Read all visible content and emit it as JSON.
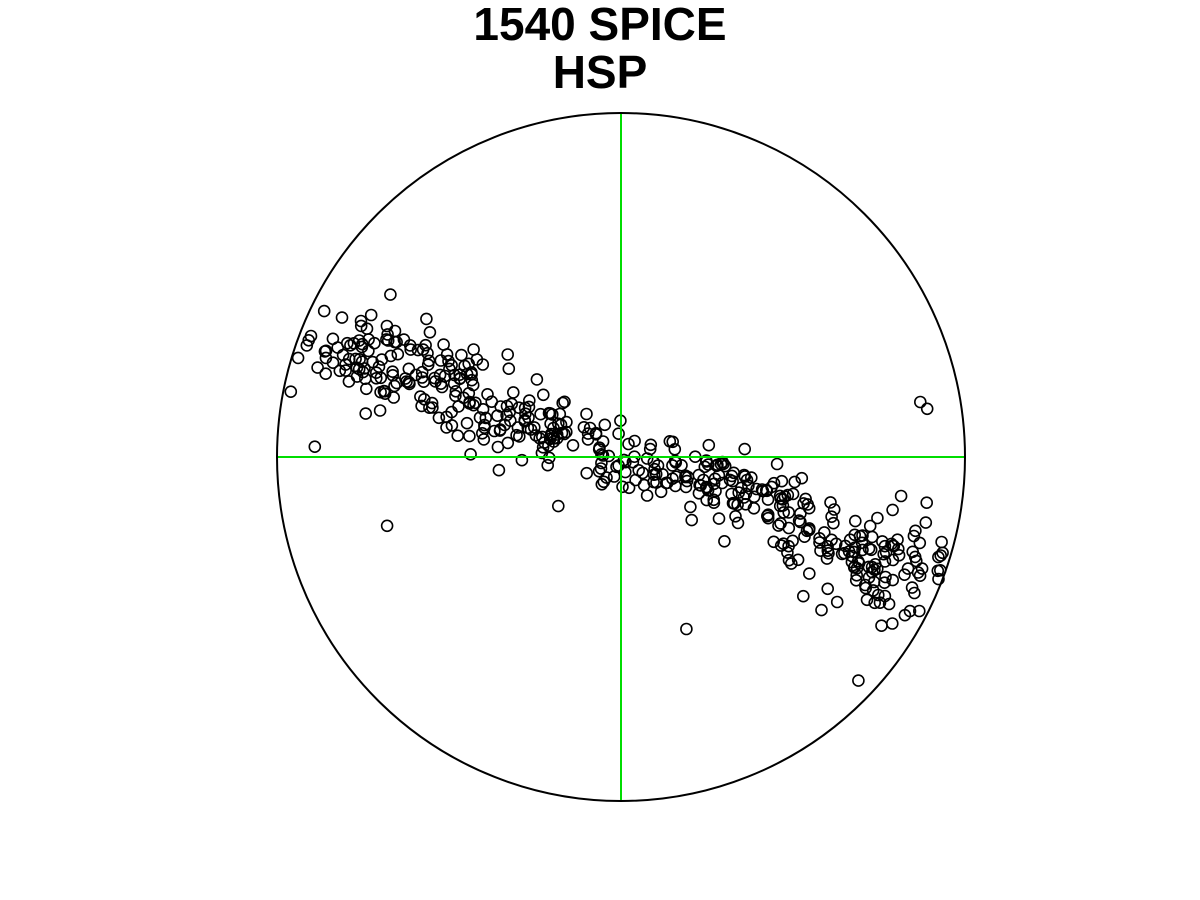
{
  "chart_data": {
    "type": "scatter",
    "title_lines": [
      "1540 SPICE",
      "HSP"
    ],
    "projection": "stereonet",
    "xlim": [
      -1,
      1
    ],
    "ylim": [
      -1,
      1
    ],
    "grid": false,
    "legend": "none",
    "colors": {
      "points": "#000000",
      "crosshair": "#00dd00",
      "circle": "#000000"
    },
    "marker": "open-circle",
    "clusters": [
      {
        "x": -0.62,
        "y": 0.25,
        "n": 150,
        "sx": 0.16,
        "sy": 0.08,
        "corr": -0.45
      },
      {
        "x": -0.25,
        "y": 0.08,
        "n": 80,
        "sx": 0.12,
        "sy": 0.06,
        "corr": -0.4
      },
      {
        "x": 0.08,
        "y": -0.03,
        "n": 60,
        "sx": 0.1,
        "sy": 0.05,
        "corr": -0.3
      },
      {
        "x": 0.35,
        "y": -0.1,
        "n": 80,
        "sx": 0.1,
        "sy": 0.06,
        "corr": -0.35
      },
      {
        "x": 0.7,
        "y": -0.28,
        "n": 130,
        "sx": 0.14,
        "sy": 0.08,
        "corr": -0.35
      }
    ],
    "outliers": [
      {
        "x": -0.68,
        "y": -0.2
      },
      {
        "x": 0.19,
        "y": -0.5
      },
      {
        "x": 0.69,
        "y": -0.65
      },
      {
        "x": 0.87,
        "y": 0.16
      },
      {
        "x": 0.89,
        "y": 0.14
      },
      {
        "x": -0.89,
        "y": 0.03
      }
    ]
  }
}
